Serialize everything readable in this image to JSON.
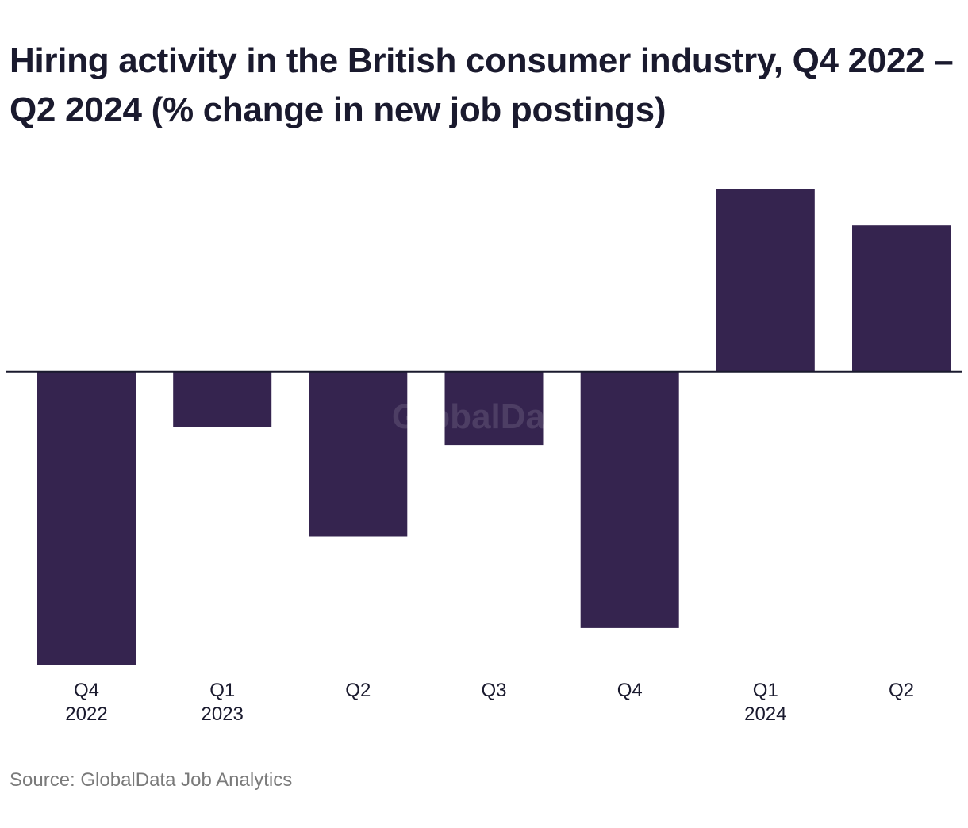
{
  "chart_data": {
    "type": "bar",
    "title": "Hiring activity in the British consumer industry, Q4 2022 – Q2 2024 (% change in new job postings)",
    "categories": [
      "Q4 2022",
      "Q1 2023",
      "Q2 2023",
      "Q3 2023",
      "Q4 2023",
      "Q1 2024",
      "Q2 2024"
    ],
    "tick_labels": [
      {
        "quarter": "Q4",
        "year": "2022"
      },
      {
        "quarter": "Q1",
        "year": "2023"
      },
      {
        "quarter": "Q2",
        "year": ""
      },
      {
        "quarter": "Q3",
        "year": ""
      },
      {
        "quarter": "Q4",
        "year": ""
      },
      {
        "quarter": "Q1",
        "year": "2024"
      },
      {
        "quarter": "Q2",
        "year": ""
      }
    ],
    "values": [
      -16.0,
      -3.0,
      -9.0,
      -4.0,
      -14.0,
      10.0,
      8.0
    ],
    "xlabel": "",
    "ylabel": "",
    "ylim": [
      -16.0,
      10.0
    ],
    "grid": false,
    "legend": "none",
    "bar_color": "#35244f",
    "watermark": "GlobalData",
    "source": "Source: GlobalData Job Analytics"
  }
}
